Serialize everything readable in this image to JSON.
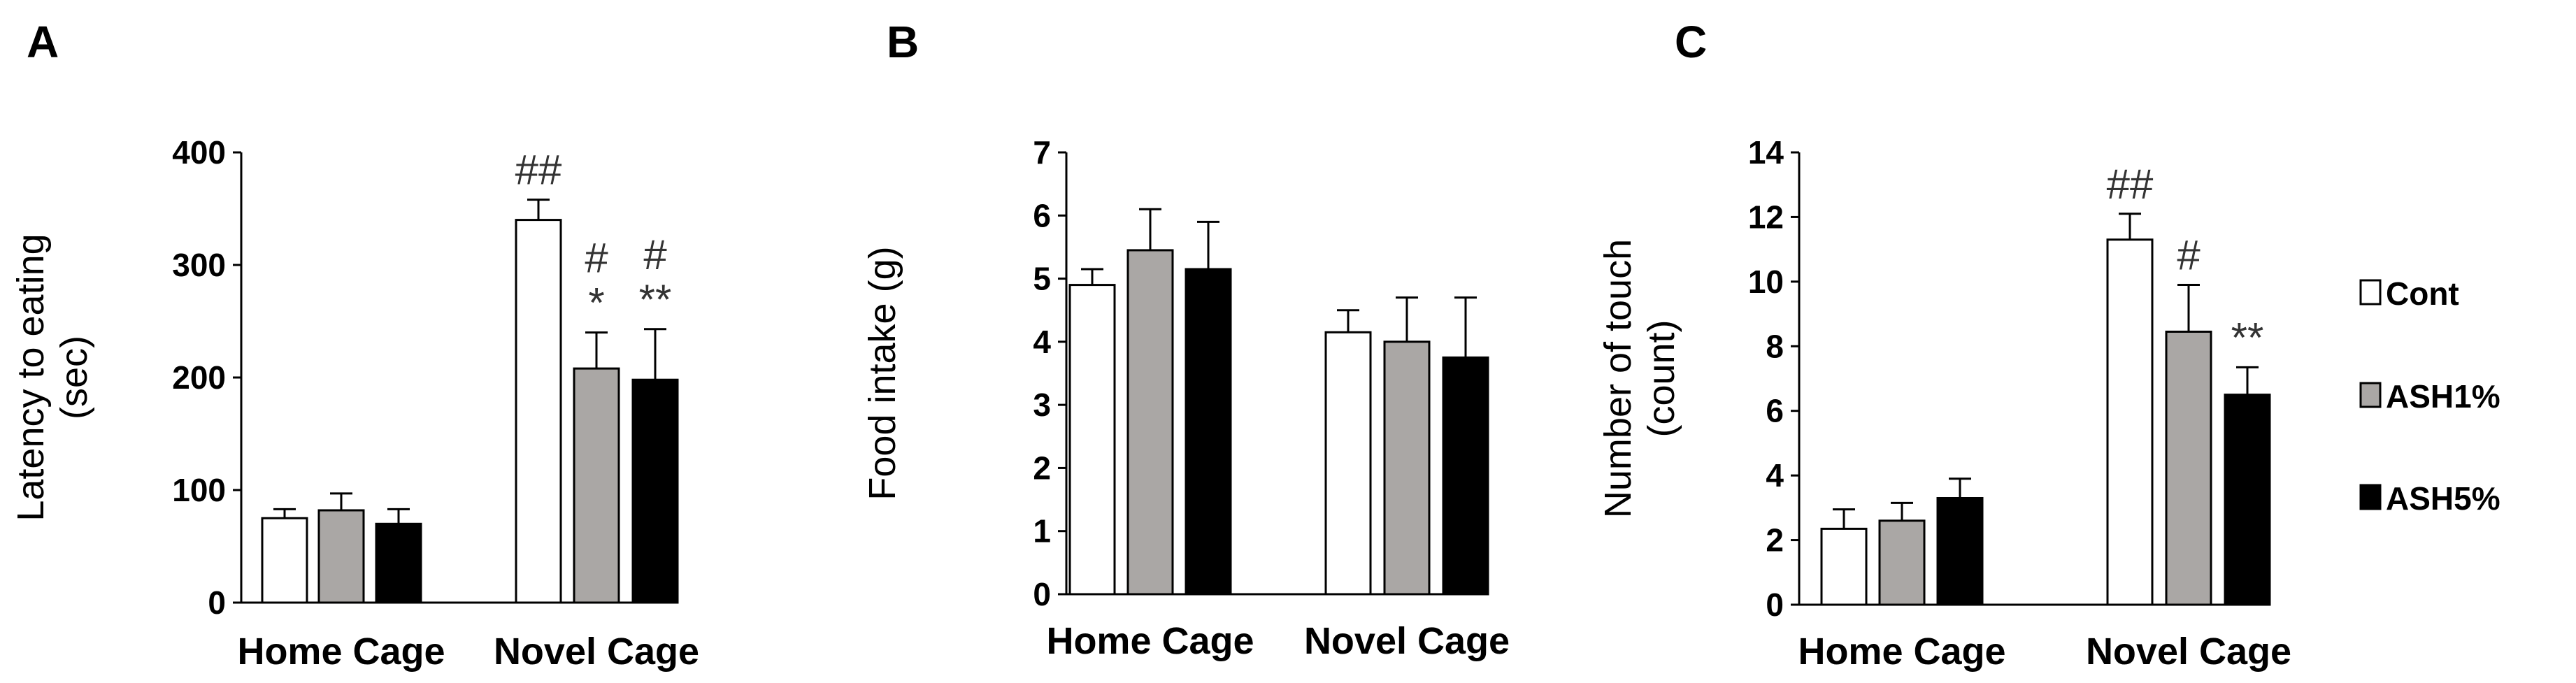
{
  "colors": {
    "Cont": "#ffffff",
    "ASH1%": "#aaa7a5",
    "ASH5%": "#000000"
  },
  "legend": [
    "Cont",
    "ASH1%",
    "ASH5%"
  ],
  "chart_data": [
    {
      "panel": "A",
      "type": "bar",
      "ylabel": [
        "Latency to eating",
        "(sec)"
      ],
      "ylim": [
        0,
        400
      ],
      "yticks": [
        0,
        100,
        200,
        300,
        400
      ],
      "categories": [
        "Home Cage",
        "Novel Cage"
      ],
      "series": [
        {
          "name": "Cont",
          "values": [
            75,
            340
          ],
          "errors": [
            8,
            18
          ]
        },
        {
          "name": "ASH1%",
          "values": [
            82,
            208
          ],
          "errors": [
            15,
            32
          ]
        },
        {
          "name": "ASH5%",
          "values": [
            70,
            198
          ],
          "errors": [
            13,
            45
          ]
        }
      ],
      "annotations": [
        {
          "category": 1,
          "series": 0,
          "lines": [
            "##"
          ]
        },
        {
          "category": 1,
          "series": 1,
          "lines": [
            "#",
            "*"
          ]
        },
        {
          "category": 1,
          "series": 2,
          "lines": [
            "#",
            "**"
          ]
        }
      ]
    },
    {
      "panel": "B",
      "type": "bar",
      "ylabel": [
        "Food intake (g)"
      ],
      "ylim": [
        0,
        7
      ],
      "yticks": [
        0,
        1,
        2,
        3,
        4,
        5,
        6,
        7
      ],
      "categories": [
        "Home Cage",
        "Novel Cage"
      ],
      "series": [
        {
          "name": "Cont",
          "values": [
            4.9,
            4.15
          ],
          "errors": [
            0.25,
            0.35
          ]
        },
        {
          "name": "ASH1%",
          "values": [
            5.45,
            4.0
          ],
          "errors": [
            0.65,
            0.7
          ]
        },
        {
          "name": "ASH5%",
          "values": [
            5.15,
            3.75
          ],
          "errors": [
            0.75,
            0.95
          ]
        }
      ],
      "annotations": []
    },
    {
      "panel": "C",
      "type": "bar",
      "ylabel": [
        "Number of touch",
        "(count)"
      ],
      "ylim": [
        0,
        14
      ],
      "yticks": [
        0,
        2,
        4,
        6,
        8,
        10,
        12,
        14
      ],
      "categories": [
        "Home Cage",
        "Novel Cage"
      ],
      "series": [
        {
          "name": "Cont",
          "values": [
            2.35,
            11.3
          ],
          "errors": [
            0.6,
            0.8
          ]
        },
        {
          "name": "ASH1%",
          "values": [
            2.6,
            8.45
          ],
          "errors": [
            0.55,
            1.45
          ]
        },
        {
          "name": "ASH5%",
          "values": [
            3.3,
            6.5
          ],
          "errors": [
            0.6,
            0.85
          ]
        }
      ],
      "annotations": [
        {
          "category": 1,
          "series": 0,
          "lines": [
            "##"
          ]
        },
        {
          "category": 1,
          "series": 1,
          "lines": [
            "#"
          ]
        },
        {
          "category": 1,
          "series": 2,
          "lines": [
            "**"
          ]
        }
      ]
    }
  ]
}
